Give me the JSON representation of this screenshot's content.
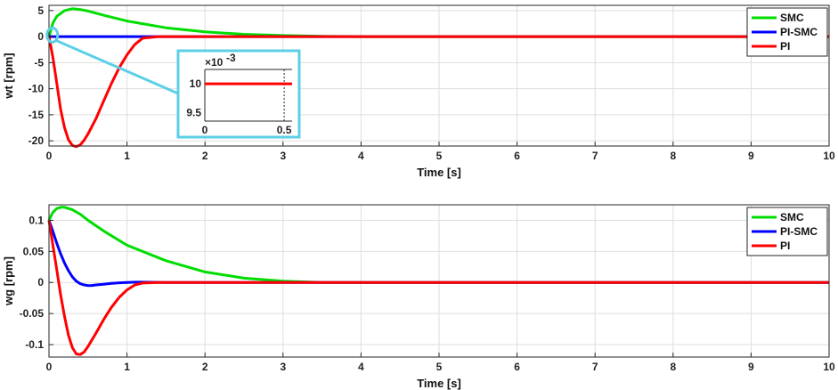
{
  "chart_data": [
    {
      "type": "line",
      "xlabel": "Time [s]",
      "ylabel": "wt [rpm]",
      "xlim": [
        0,
        10
      ],
      "ylim": [
        -21,
        6
      ],
      "xticks": [
        0,
        1,
        2,
        3,
        4,
        5,
        6,
        7,
        8,
        9,
        10
      ],
      "xtick_labels": [
        "0",
        "1",
        "2",
        "3",
        "4",
        "5",
        "6",
        "7",
        "8",
        "9",
        "10"
      ],
      "yticks": [
        5,
        0,
        -5,
        -10,
        -15,
        -20
      ],
      "ytick_labels": [
        "5",
        "0",
        "-5",
        "-10",
        "-15",
        "-20"
      ],
      "grid": true,
      "legend_position": "top-right",
      "series": [
        {
          "name": "SMC",
          "color": "#00dd00",
          "x": [
            0,
            0.05,
            0.1,
            0.2,
            0.3,
            0.4,
            0.5,
            0.7,
            1.0,
            1.5,
            2.0,
            2.5,
            3.0,
            3.5,
            4,
            5,
            6,
            7,
            8,
            9,
            10
          ],
          "y": [
            0,
            2.6,
            3.9,
            5.0,
            5.35,
            5.2,
            4.9,
            4.1,
            3.0,
            1.7,
            0.9,
            0.45,
            0.2,
            0.05,
            0,
            0,
            0,
            0,
            0,
            0,
            0
          ]
        },
        {
          "name": "PI-SMC",
          "color": "#0000ff",
          "x": [
            0,
            1,
            2,
            3,
            4,
            5,
            6,
            7,
            8,
            9,
            10
          ],
          "y": [
            0,
            0,
            0,
            0,
            0,
            0,
            0,
            0,
            0,
            0,
            0
          ]
        },
        {
          "name": "PI",
          "color": "#ff0000",
          "x": [
            0,
            0.05,
            0.1,
            0.15,
            0.2,
            0.25,
            0.3,
            0.35,
            0.4,
            0.45,
            0.5,
            0.6,
            0.7,
            0.8,
            0.9,
            1.0,
            1.1,
            1.2,
            1.4,
            2,
            3,
            4,
            5,
            6,
            7,
            8,
            9,
            10
          ],
          "y": [
            0,
            -4,
            -9,
            -14,
            -17.5,
            -19.8,
            -20.9,
            -21.1,
            -20.8,
            -19.9,
            -18.7,
            -15.8,
            -12.4,
            -9,
            -6,
            -3.5,
            -1.5,
            -0.3,
            0,
            0,
            0,
            0,
            0,
            0,
            0,
            0,
            0,
            0
          ]
        }
      ],
      "inset": {
        "exponent_label": "×10",
        "exponent_power": "-3",
        "xlim": [
          0,
          0.55
        ],
        "ylim": [
          9.35,
          10.25
        ],
        "xticks": [
          0,
          0.5
        ],
        "xtick_labels": [
          "0",
          "0.5"
        ],
        "yticks": [
          10,
          9.5
        ],
        "ytick_labels": [
          "10",
          "9.5"
        ],
        "line": {
          "color": "#ff0000",
          "x": [
            0,
            0.55
          ],
          "y": [
            10,
            10
          ]
        },
        "border_color": "#5ccfe6"
      }
    },
    {
      "type": "line",
      "xlabel": "Time [s]",
      "ylabel": "wg [rpm]",
      "xlim": [
        0,
        10
      ],
      "ylim": [
        -0.12,
        0.125
      ],
      "xticks": [
        0,
        1,
        2,
        3,
        4,
        5,
        6,
        7,
        8,
        9,
        10
      ],
      "xtick_labels": [
        "0",
        "1",
        "2",
        "3",
        "4",
        "5",
        "6",
        "7",
        "8",
        "9",
        "10"
      ],
      "yticks": [
        0.1,
        0.05,
        0,
        -0.05,
        -0.1
      ],
      "ytick_labels": [
        "0.1",
        "0.05",
        "0",
        "-0.05",
        "-0.1"
      ],
      "grid": true,
      "legend_position": "top-right",
      "series": [
        {
          "name": "SMC",
          "color": "#00dd00",
          "x": [
            0,
            0.05,
            0.1,
            0.15,
            0.2,
            0.3,
            0.4,
            0.5,
            0.7,
            1.0,
            1.5,
            2.0,
            2.5,
            3.0,
            3.5,
            4,
            5,
            6,
            7,
            8,
            9,
            10
          ],
          "y": [
            0.1,
            0.113,
            0.119,
            0.121,
            0.121,
            0.117,
            0.11,
            0.1,
            0.083,
            0.06,
            0.035,
            0.017,
            0.007,
            0.002,
            0,
            0,
            0,
            0,
            0,
            0,
            0,
            0
          ]
        },
        {
          "name": "PI-SMC",
          "color": "#0000ff",
          "x": [
            0,
            0.05,
            0.1,
            0.15,
            0.2,
            0.25,
            0.3,
            0.35,
            0.4,
            0.45,
            0.5,
            0.55,
            0.6,
            0.7,
            0.8,
            0.9,
            1.0,
            1.1,
            1.2,
            1.5,
            2,
            3,
            4,
            5,
            6,
            7,
            8,
            9,
            10
          ],
          "y": [
            0.1,
            0.082,
            0.063,
            0.046,
            0.031,
            0.019,
            0.009,
            0.002,
            -0.002,
            -0.004,
            -0.005,
            -0.0048,
            -0.004,
            -0.003,
            -0.0015,
            -0.0005,
            0,
            0.0005,
            0.0005,
            0,
            0,
            0,
            0,
            0,
            0,
            0,
            0,
            0,
            0
          ]
        },
        {
          "name": "PI",
          "color": "#ff0000",
          "x": [
            0,
            0.05,
            0.1,
            0.15,
            0.2,
            0.25,
            0.3,
            0.35,
            0.4,
            0.45,
            0.5,
            0.6,
            0.7,
            0.8,
            0.9,
            1.0,
            1.1,
            1.2,
            1.4,
            2,
            3,
            4,
            5,
            6,
            7,
            8,
            9,
            10
          ],
          "y": [
            0.1,
            0.06,
            0.02,
            -0.02,
            -0.055,
            -0.085,
            -0.105,
            -0.115,
            -0.116,
            -0.112,
            -0.103,
            -0.082,
            -0.06,
            -0.04,
            -0.024,
            -0.012,
            -0.004,
            -0.001,
            0,
            0,
            0,
            0,
            0,
            0,
            0,
            0,
            0,
            0
          ]
        }
      ]
    }
  ]
}
